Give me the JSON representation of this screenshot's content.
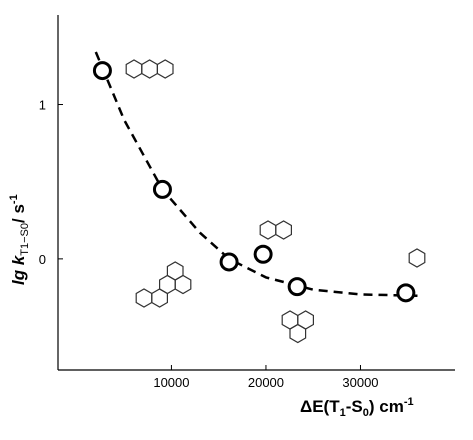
{
  "chart_data": {
    "type": "scatter",
    "x": [
      2700,
      9050,
      16100,
      19700,
      23300,
      34800
    ],
    "values": [
      1.22,
      0.45,
      -0.02,
      0.03,
      -0.18,
      -0.22
    ],
    "fit": {
      "x": [
        2000,
        5000,
        9050,
        13000,
        16100,
        20000,
        25000,
        30000,
        36500
      ],
      "y": [
        1.34,
        0.9,
        0.45,
        0.17,
        0.0,
        -0.12,
        -0.2,
        -0.23,
        -0.24
      ]
    },
    "xlim": [
      -2000,
      40000
    ],
    "xticks": [
      10000,
      20000,
      30000
    ],
    "ylim": [
      -0.72,
      1.58
    ],
    "yticks": [
      1,
      0
    ],
    "x_label": [
      "ΔE(T",
      "1",
      "-S",
      "0",
      ") cm",
      "-1"
    ],
    "y_label": [
      "lg k",
      "T1−S0",
      "/ s",
      "-1"
    ]
  }
}
